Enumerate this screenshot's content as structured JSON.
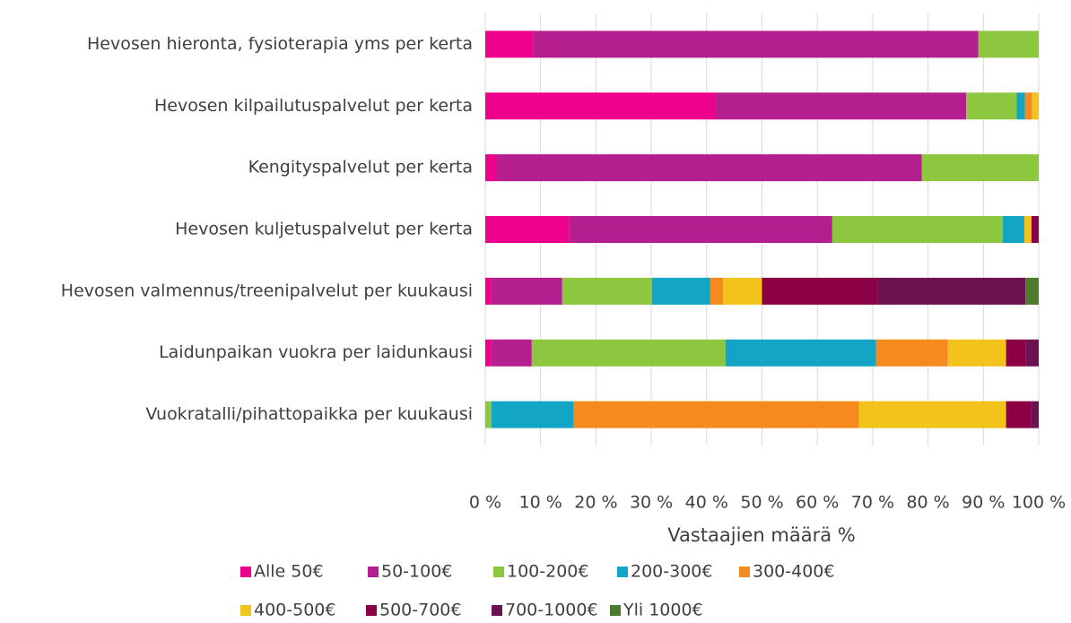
{
  "chart_data": {
    "type": "stacked-bar-horizontal",
    "categories": [
      "Hevosen hieronta, fysioterapia yms per kerta",
      "Hevosen kilpailutuspalvelut per kerta",
      "Kengityspalvelut per kerta",
      "Hevosen kuljetuspalvelut per kerta",
      "Hevosen valmennus/treenipalvelut per kuukausi",
      "Laidunpaikan vuokra per laidunkausi",
      "Vuokratalli/pihattopaikka per kuukausi"
    ],
    "series": [
      {
        "name": "Alle 50€",
        "color": "#ec008c",
        "values": [
          8.7,
          41.5,
          2.1,
          15.2,
          1.1,
          1.1,
          null
        ]
      },
      {
        "name": "50-100€",
        "color": "#b41e8e",
        "values": [
          80.4,
          45.4,
          76.8,
          47.5,
          12.8,
          7.3,
          null
        ]
      },
      {
        "name": "100-200€",
        "color": "#8dc63f",
        "values": [
          10.9,
          9.1,
          21.1,
          30.8,
          16.2,
          35.0,
          1.1
        ]
      },
      {
        "name": "200-300€",
        "color": "#12a5c6",
        "values": [
          null,
          1.5,
          null,
          3.9,
          10.5,
          27.2,
          14.9
        ]
      },
      {
        "name": "300-400€",
        "color": "#f58a1f",
        "values": [
          null,
          1.3,
          null,
          null,
          2.4,
          13.0,
          51.5
        ]
      },
      {
        "name": "400-500€",
        "color": "#f2c31a",
        "values": [
          null,
          1.2,
          null,
          1.3,
          7.0,
          10.5,
          26.6
        ]
      },
      {
        "name": "500-700€",
        "color": "#8b0045",
        "values": [
          null,
          null,
          null,
          1.3,
          20.9,
          3.6,
          4.5
        ]
      },
      {
        "name": "700-1000€",
        "color": "#6d1250",
        "values": [
          null,
          null,
          null,
          null,
          26.7,
          2.3,
          1.4
        ]
      },
      {
        "name": "Yli 1000€",
        "color": "#4e7a2c",
        "values": [
          null,
          null,
          null,
          null,
          2.4,
          null,
          null
        ]
      }
    ],
    "x_label": "Vastaajien määrä %",
    "xlim": [
      0,
      100
    ],
    "xticks": [
      {
        "value": 0,
        "label": "0 %"
      },
      {
        "value": 10,
        "label": "10 %"
      },
      {
        "value": 20,
        "label": "20 %"
      },
      {
        "value": 30,
        "label": "30 %"
      },
      {
        "value": 40,
        "label": "40 %"
      },
      {
        "value": 50,
        "label": "50 %"
      },
      {
        "value": 60,
        "label": "60 %"
      },
      {
        "value": 70,
        "label": "70 %"
      },
      {
        "value": 80,
        "label": "80 %"
      },
      {
        "value": 90,
        "label": "90 %"
      },
      {
        "value": 100,
        "label": "100 %"
      }
    ],
    "grid": true,
    "legend": "bottom"
  }
}
